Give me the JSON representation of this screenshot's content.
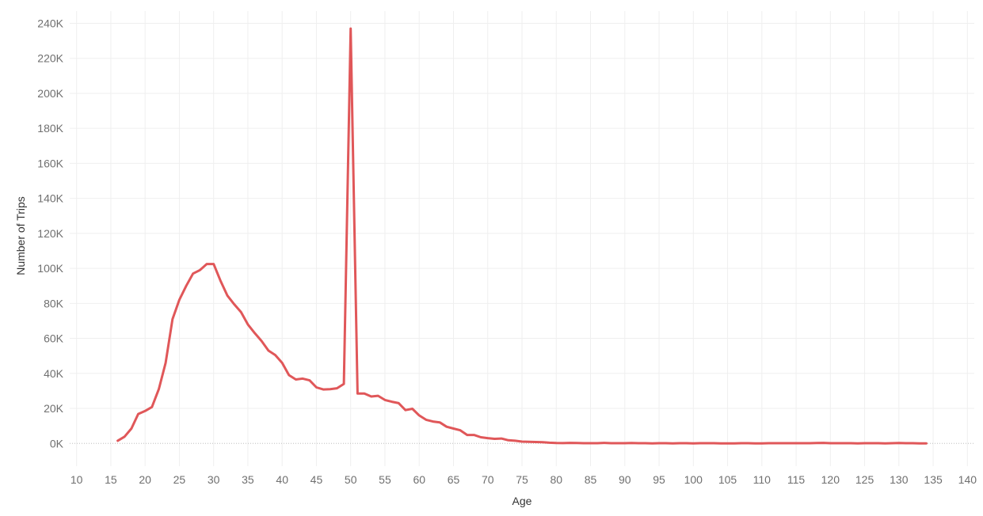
{
  "chart_data": {
    "type": "line",
    "title": "",
    "xlabel": "Age",
    "ylabel": "Number of Trips",
    "xlim": [
      9,
      141
    ],
    "ylim": [
      -13000,
      247000
    ],
    "x_ticks": [
      10,
      15,
      20,
      25,
      30,
      35,
      40,
      45,
      50,
      55,
      60,
      65,
      70,
      75,
      80,
      85,
      90,
      95,
      100,
      105,
      110,
      115,
      120,
      125,
      130,
      135,
      140
    ],
    "x_tick_labels": [
      "10",
      "15",
      "20",
      "25",
      "30",
      "35",
      "40",
      "45",
      "50",
      "55",
      "60",
      "65",
      "70",
      "75",
      "80",
      "85",
      "90",
      "95",
      "100",
      "105",
      "110",
      "115",
      "120",
      "125",
      "130",
      "135",
      "140"
    ],
    "y_ticks": [
      0,
      20000,
      40000,
      60000,
      80000,
      100000,
      120000,
      140000,
      160000,
      180000,
      200000,
      220000,
      240000
    ],
    "y_tick_labels": [
      "0K",
      "20K",
      "40K",
      "60K",
      "80K",
      "100K",
      "120K",
      "140K",
      "160K",
      "180K",
      "200K",
      "220K",
      "240K"
    ],
    "grid": true,
    "series": [
      {
        "name": "",
        "color": "#e05759",
        "x": [
          16,
          17,
          18,
          19,
          20,
          21,
          22,
          23,
          24,
          25,
          26,
          27,
          28,
          29,
          30,
          31,
          32,
          33,
          34,
          35,
          36,
          37,
          38,
          39,
          40,
          41,
          42,
          43,
          44,
          45,
          46,
          47,
          48,
          49,
          50,
          51,
          52,
          53,
          54,
          55,
          56,
          57,
          58,
          59,
          60,
          61,
          62,
          63,
          64,
          65,
          66,
          67,
          68,
          69,
          70,
          71,
          72,
          73,
          74,
          75,
          76,
          77,
          78,
          79,
          80,
          81,
          82,
          83,
          84,
          85,
          86,
          87,
          88,
          89,
          90,
          91,
          92,
          93,
          94,
          95,
          96,
          97,
          98,
          99,
          100,
          101,
          102,
          103,
          104,
          105,
          106,
          107,
          108,
          109,
          110,
          111,
          112,
          113,
          114,
          115,
          116,
          117,
          118,
          119,
          120,
          121,
          122,
          123,
          124,
          125,
          126,
          127,
          128,
          129,
          130,
          131,
          132,
          133,
          134
        ],
        "values": [
          1500,
          3800,
          8500,
          16800,
          18500,
          20800,
          31000,
          46000,
          71000,
          82000,
          90000,
          97000,
          99000,
          102500,
          102500,
          93000,
          84500,
          79500,
          75000,
          68000,
          63000,
          58500,
          53000,
          50500,
          46000,
          39000,
          36500,
          37000,
          36000,
          32000,
          30800,
          31000,
          31500,
          34000,
          237000,
          28500,
          28500,
          26800,
          27200,
          24800,
          23800,
          23000,
          19000,
          19800,
          16000,
          13500,
          12500,
          12000,
          9500,
          8500,
          7500,
          4800,
          4800,
          3500,
          3000,
          2600,
          2800,
          1800,
          1500,
          1000,
          900,
          800,
          700,
          400,
          200,
          150,
          300,
          200,
          100,
          100,
          100,
          300,
          100,
          100,
          100,
          200,
          100,
          100,
          0,
          100,
          100,
          0,
          100,
          100,
          0,
          100,
          100,
          100,
          0,
          0,
          0,
          100,
          100,
          0,
          0,
          100,
          100,
          100,
          100,
          100,
          100,
          100,
          200,
          300,
          100,
          100,
          100,
          100,
          0,
          100,
          100,
          100,
          0,
          100,
          200,
          100,
          100,
          0,
          0
        ]
      }
    ]
  }
}
